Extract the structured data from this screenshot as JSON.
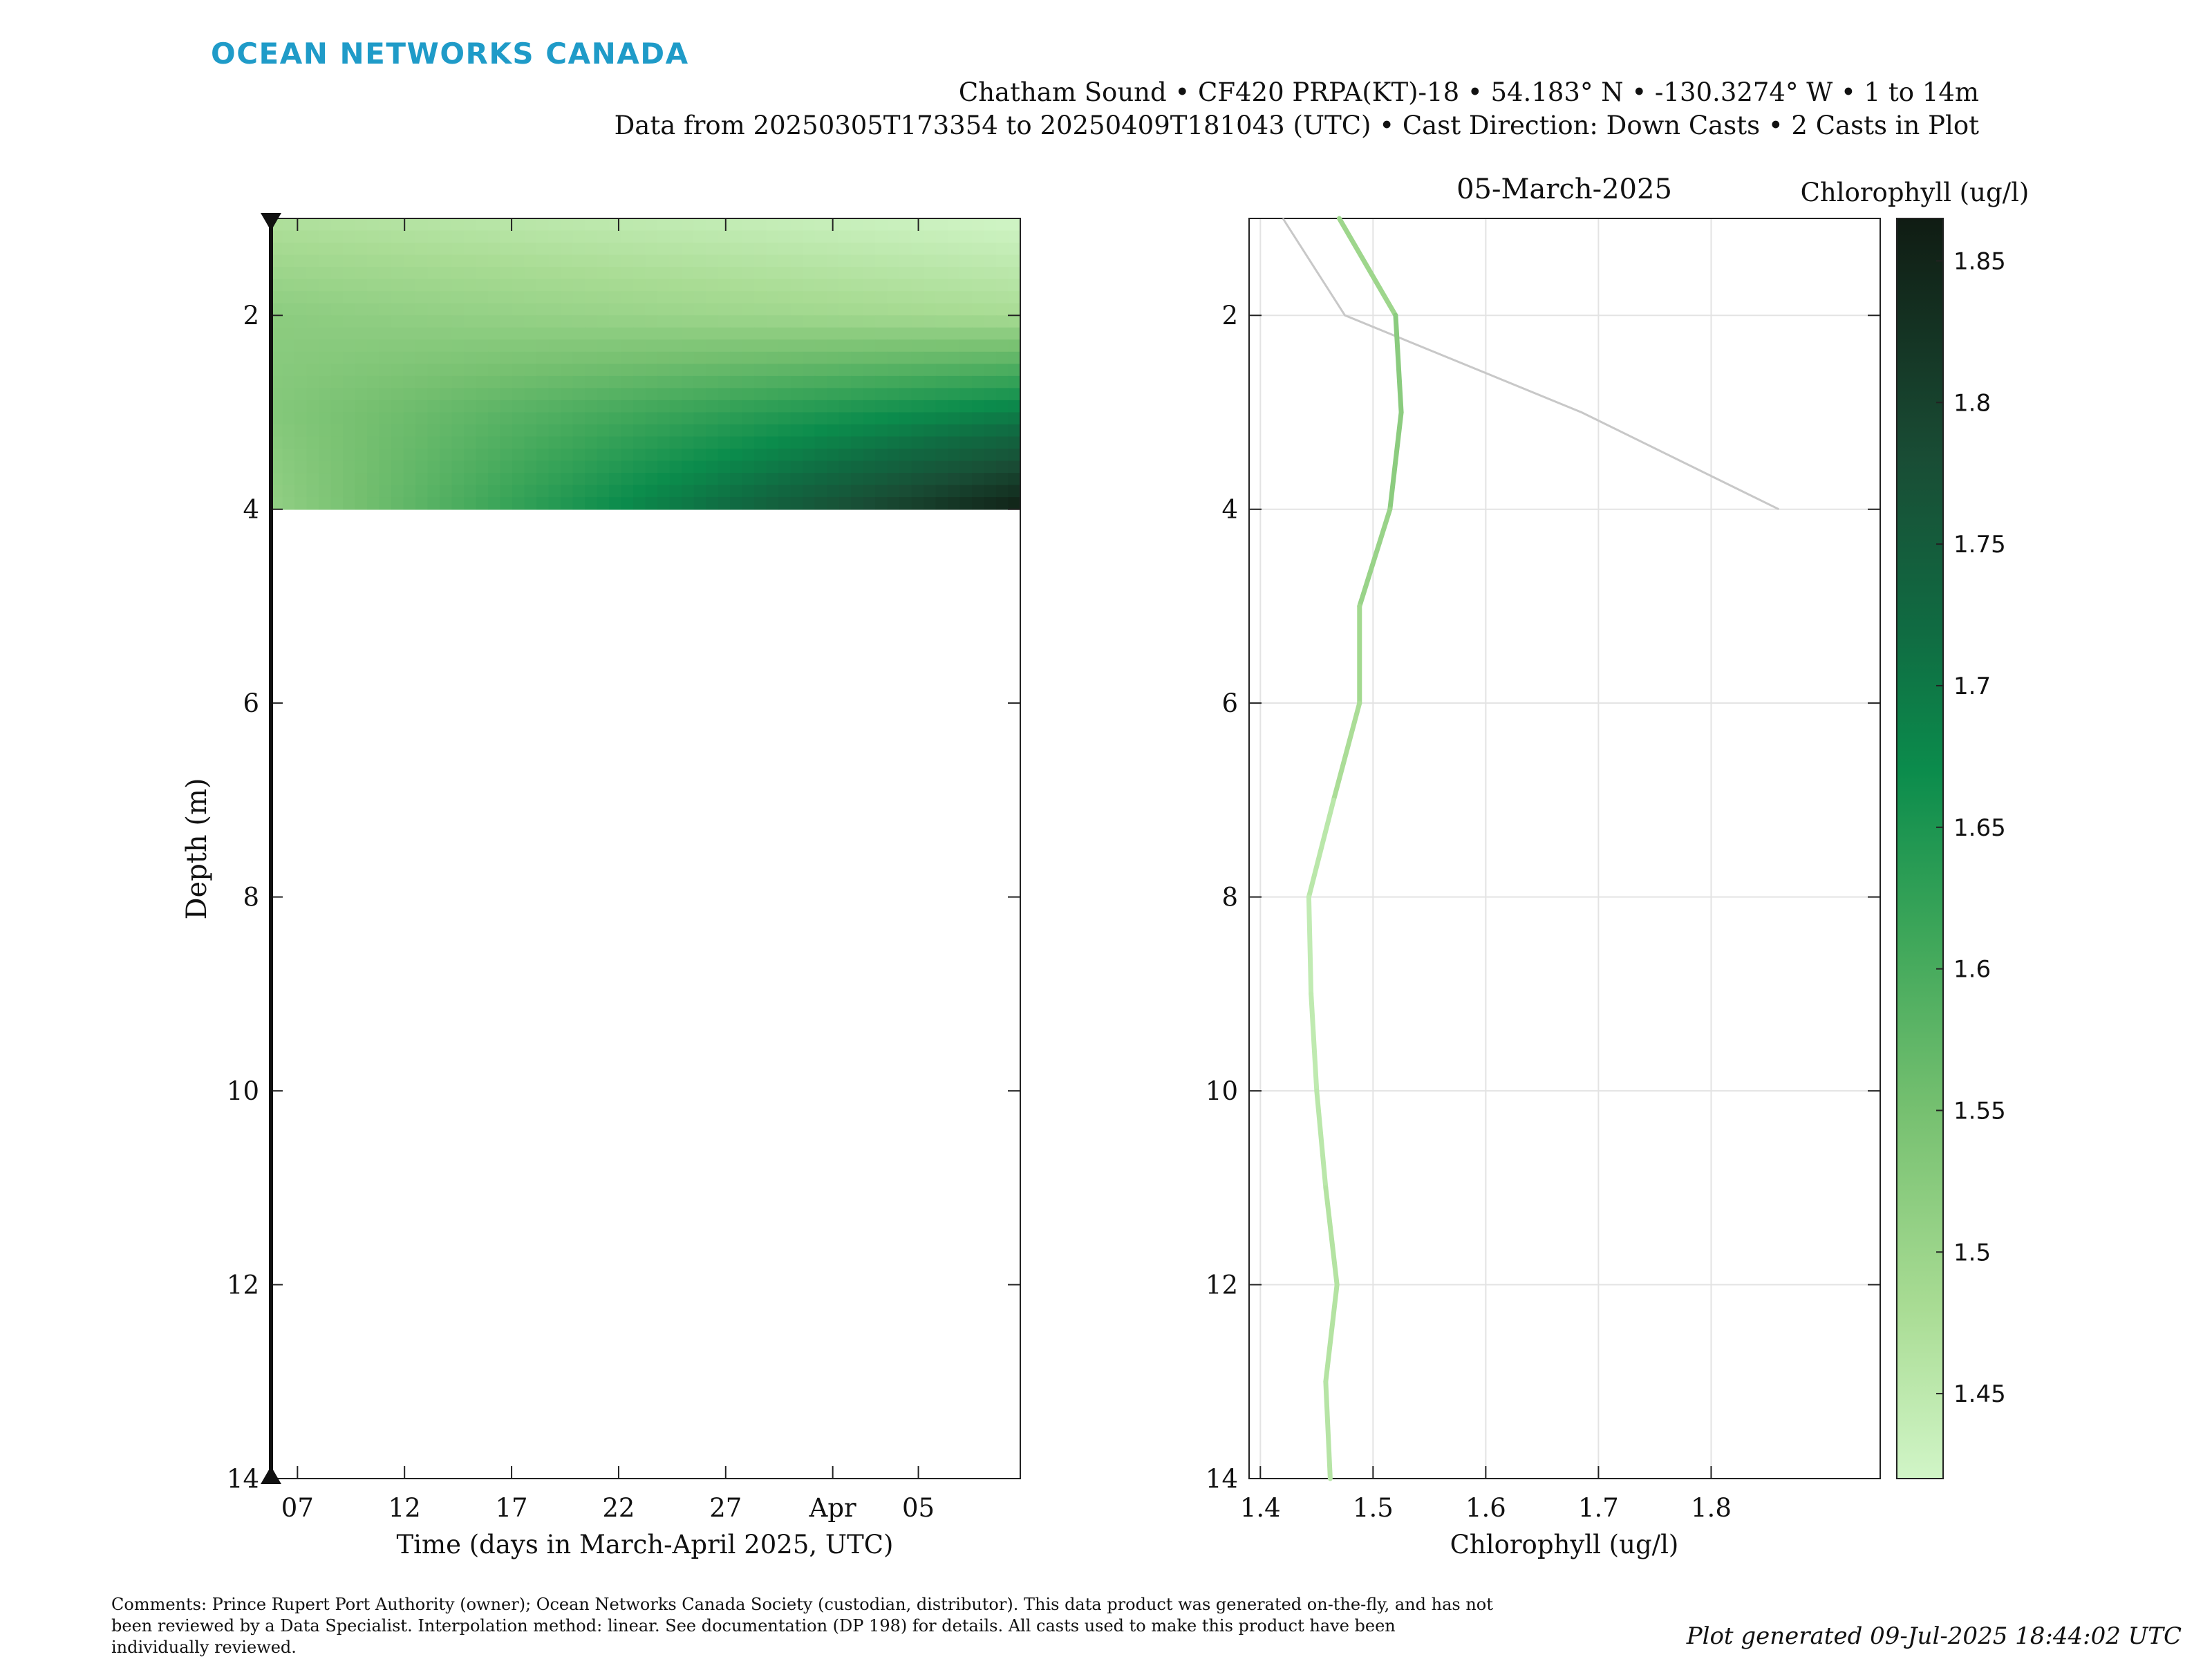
{
  "brand": {
    "name": "OCEAN NETWORKS CANADA",
    "color": "#1f9bc8"
  },
  "header": {
    "line1": "Chatham Sound • CF420 PRPA(KT)-18 • 54.183° N • -130.3274° W • 1 to 14m",
    "line2": "Data from 20250305T173354 to 20250409T181043 (UTC) • Cast Direction: Down Casts • 2 Casts in Plot"
  },
  "footer": {
    "comments": [
      "Comments: Prince Rupert Port Authority (owner); Ocean Networks Canada Society (custodian, distributor). This data product was generated on-the-fly, and has not",
      "been reviewed by a Data Specialist. Interpolation method: linear. See documentation (DP 198) for details. All casts used to make this product have been",
      "individually reviewed."
    ],
    "generated": "Plot generated 09-Jul-2025 18:44:02 UTC"
  },
  "chart_data": [
    {
      "type": "heatmap",
      "xlabel": "Time (days in March-April 2025, UTC)",
      "ylabel": "Depth (m)",
      "x_range_days_in_march": [
        5.73,
        40.76
      ],
      "y_range": [
        1,
        14
      ],
      "y_reversed": true,
      "x_ticks": [
        {
          "day": 7,
          "label": "07"
        },
        {
          "day": 12,
          "label": "12"
        },
        {
          "day": 17,
          "label": "17"
        },
        {
          "day": 22,
          "label": "22"
        },
        {
          "day": 27,
          "label": "27"
        },
        {
          "day": 32,
          "label": "Apr"
        },
        {
          "day": 36,
          "label": "05"
        }
      ],
      "y_ticks": [
        2,
        4,
        6,
        8,
        10,
        12,
        14
      ],
      "cast_times": [
        "2025-03-05 17:33",
        "2025-04-09 18:10"
      ],
      "cast_markers": {
        "top_depth": 1,
        "bottom_depth": 14
      },
      "casts": [
        {
          "date": "05-March-2025",
          "depth": [
            1,
            2,
            3,
            4
          ],
          "chl": [
            1.47,
            1.52,
            1.53,
            1.51
          ]
        },
        {
          "date": "09-April-2025",
          "depth": [
            1,
            2,
            3,
            4
          ],
          "chl": [
            1.42,
            1.48,
            1.69,
            1.86
          ]
        }
      ],
      "filled_depth_range": [
        1,
        4
      ]
    },
    {
      "type": "line",
      "title": "05-March-2025",
      "xlabel": "Chlorophyll (ug/l)",
      "xlim": [
        1.39,
        1.95
      ],
      "ylim": [
        1,
        14
      ],
      "y_reversed": true,
      "x_ticks": [
        1.4,
        1.5,
        1.6,
        1.7,
        1.8
      ],
      "y_ticks": [
        2,
        4,
        6,
        8,
        10,
        12,
        14
      ],
      "grid": true,
      "series": [
        {
          "style": "colormapped",
          "depth": [
            1,
            2,
            3,
            4,
            5,
            6,
            7,
            8,
            9,
            10,
            11,
            12,
            13,
            14
          ],
          "chl": [
            1.47,
            1.52,
            1.525,
            1.515,
            1.488,
            1.488,
            1.465,
            1.443,
            1.445,
            1.45,
            1.458,
            1.468,
            1.458,
            1.462
          ]
        },
        {
          "style": "reference",
          "color": "#c8c8c8",
          "depth": [
            1,
            2,
            3,
            4
          ],
          "chl": [
            1.42,
            1.475,
            1.685,
            1.86
          ]
        }
      ]
    },
    {
      "type": "colorbar",
      "title": "Chlorophyll (ug/l)",
      "range": [
        1.42,
        1.865
      ],
      "ticks": [
        "1.45",
        "1.5",
        "1.55",
        "1.6",
        "1.65",
        "1.7",
        "1.75",
        "1.8",
        "1.85"
      ],
      "colormap": [
        {
          "v": 1.42,
          "c": "#d1f5c7"
        },
        {
          "v": 1.48,
          "c": "#a9dc94"
        },
        {
          "v": 1.55,
          "c": "#76c070"
        },
        {
          "v": 1.61,
          "c": "#3fa75a"
        },
        {
          "v": 1.67,
          "c": "#0b8c4c"
        },
        {
          "v": 1.72,
          "c": "#106b42"
        },
        {
          "v": 1.78,
          "c": "#194d35"
        },
        {
          "v": 1.865,
          "c": "#101c13"
        }
      ]
    }
  ]
}
